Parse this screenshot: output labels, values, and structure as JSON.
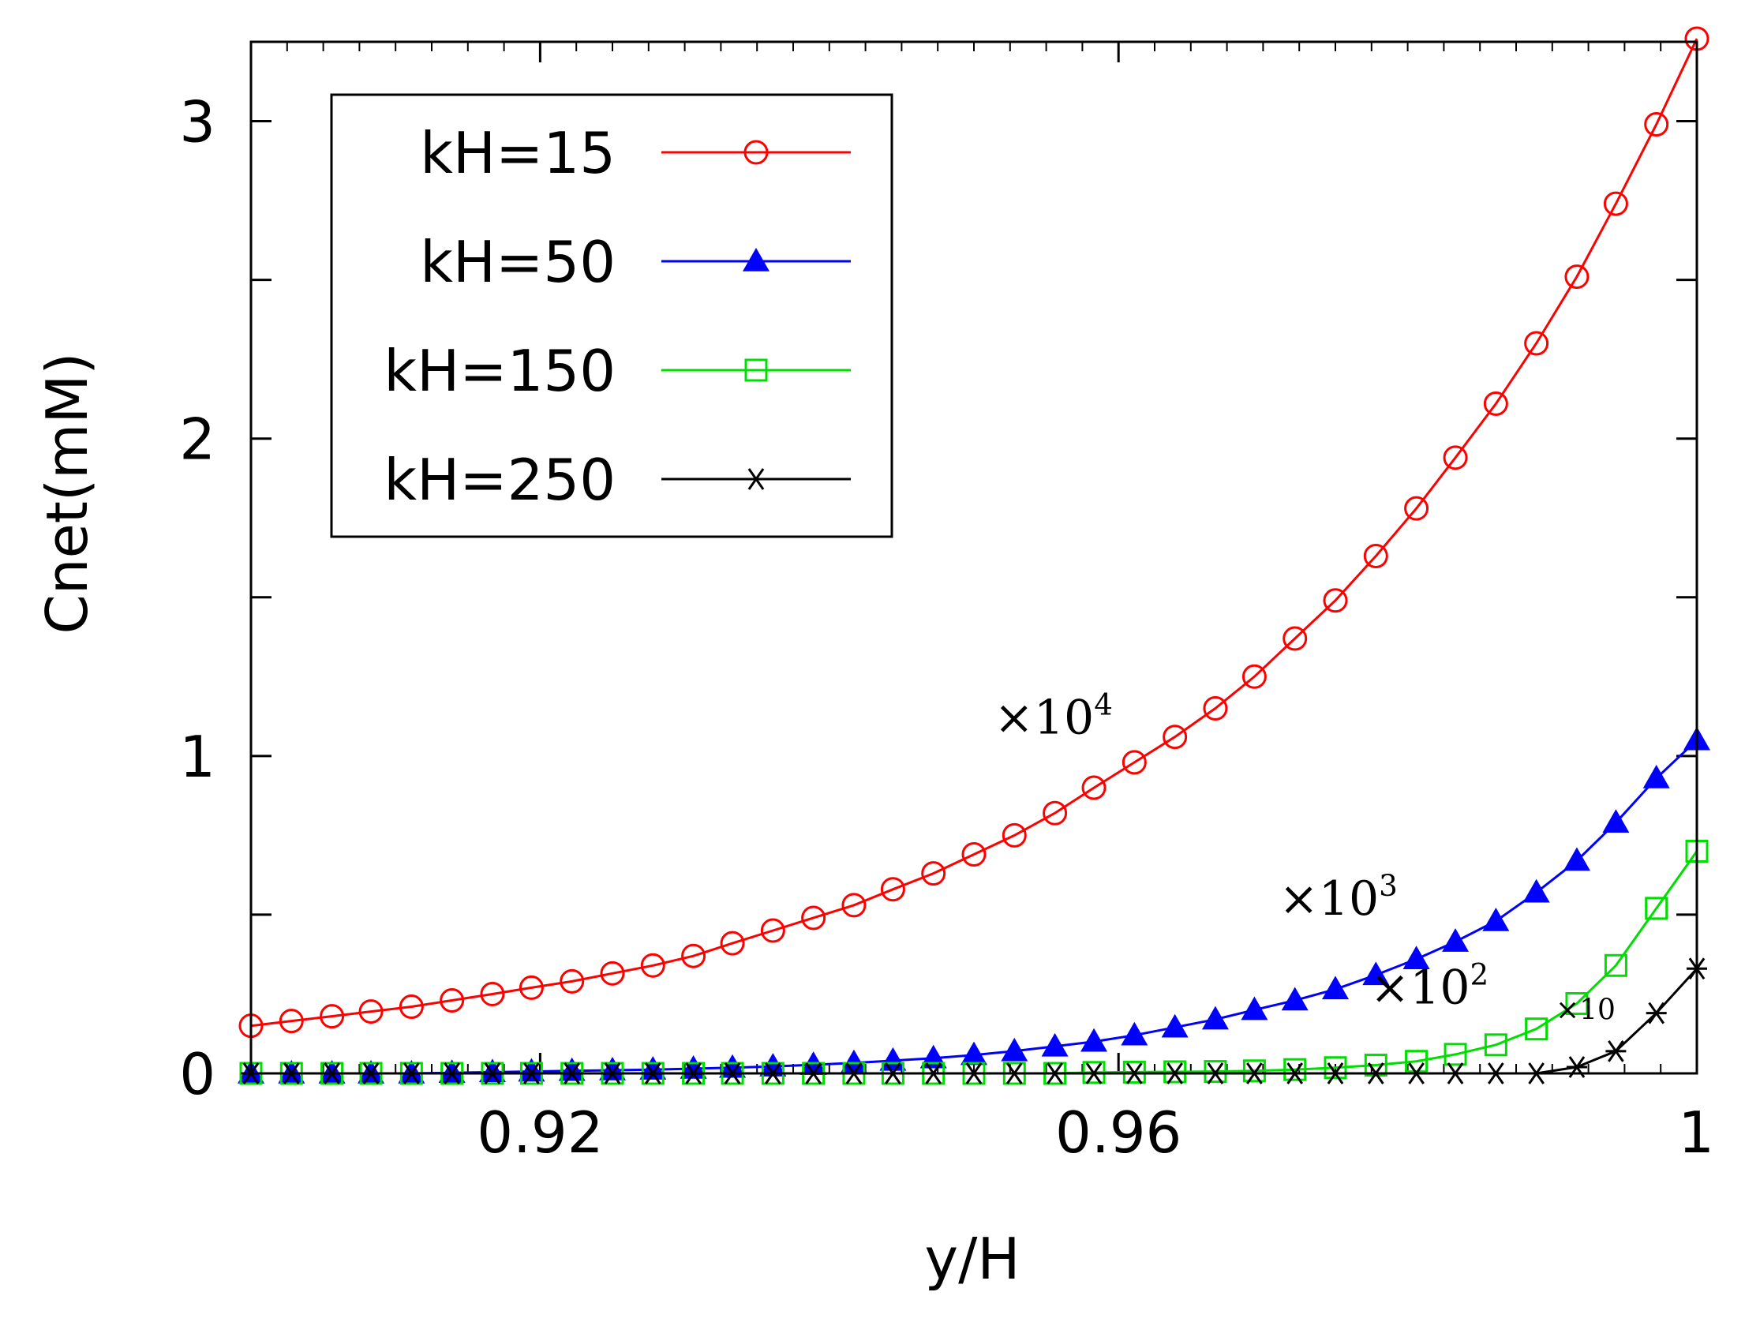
{
  "chart_data": {
    "type": "line",
    "title": "",
    "xlabel": "y/H",
    "ylabel": "Cnet(mM)",
    "xlim": [
      0.9,
      1.0
    ],
    "ylim": [
      0,
      3.25
    ],
    "x_ticks": [
      {
        "value": 0.92,
        "label": "0.92"
      },
      {
        "value": 0.96,
        "label": "0.96"
      },
      {
        "value": 1.0,
        "label": "1"
      }
    ],
    "x_minor_ticks": [
      0.9025,
      0.905,
      0.9075,
      0.91,
      0.9125,
      0.915,
      0.9175,
      0.92,
      0.9225,
      0.925,
      0.9275,
      0.93,
      0.9325,
      0.935,
      0.9375,
      0.94,
      0.9425,
      0.945,
      0.9475,
      0.95,
      0.9525,
      0.955,
      0.9575,
      0.96,
      0.9625,
      0.965,
      0.9675,
      0.97,
      0.9725,
      0.975,
      0.9775,
      0.98,
      0.9825,
      0.985,
      0.9875,
      0.99,
      0.9925,
      0.995,
      0.9975
    ],
    "y_ticks": [
      {
        "value": 0,
        "label": "0"
      },
      {
        "value": 0.5,
        "label": ""
      },
      {
        "value": 1,
        "label": "1"
      },
      {
        "value": 1.5,
        "label": ""
      },
      {
        "value": 2,
        "label": "2"
      },
      {
        "value": 2.5,
        "label": ""
      },
      {
        "value": 3,
        "label": "3"
      }
    ],
    "legend_position": "top-left",
    "series": [
      {
        "name": "kH=15",
        "color": "#ff0000",
        "marker": "circle-open",
        "points": [
          [
            0.9,
            0.15
          ],
          [
            0.9028,
            0.165
          ],
          [
            0.9056,
            0.18
          ],
          [
            0.9083,
            0.195
          ],
          [
            0.9111,
            0.21
          ],
          [
            0.9139,
            0.23
          ],
          [
            0.9167,
            0.25
          ],
          [
            0.9194,
            0.27
          ],
          [
            0.9222,
            0.29
          ],
          [
            0.925,
            0.315
          ],
          [
            0.9278,
            0.34
          ],
          [
            0.9306,
            0.37
          ],
          [
            0.9333,
            0.41
          ],
          [
            0.9361,
            0.45
          ],
          [
            0.9389,
            0.49
          ],
          [
            0.9417,
            0.53
          ],
          [
            0.9444,
            0.58
          ],
          [
            0.9472,
            0.63
          ],
          [
            0.95,
            0.69
          ],
          [
            0.9528,
            0.75
          ],
          [
            0.9556,
            0.82
          ],
          [
            0.9583,
            0.9
          ],
          [
            0.9611,
            0.98
          ],
          [
            0.9639,
            1.06
          ],
          [
            0.9667,
            1.15
          ],
          [
            0.9694,
            1.25
          ],
          [
            0.9722,
            1.37
          ],
          [
            0.975,
            1.49
          ],
          [
            0.9778,
            1.63
          ],
          [
            0.9806,
            1.78
          ],
          [
            0.9833,
            1.94
          ],
          [
            0.9861,
            2.11
          ],
          [
            0.9889,
            2.3
          ],
          [
            0.9917,
            2.51
          ],
          [
            0.9944,
            2.74
          ],
          [
            0.9972,
            2.99
          ],
          [
            1.0,
            3.26
          ]
        ]
      },
      {
        "name": "kH=50",
        "color": "#0000ff",
        "marker": "triangle-filled",
        "points": [
          [
            0.9,
            0.0
          ],
          [
            0.9028,
            0.0
          ],
          [
            0.9056,
            0.0
          ],
          [
            0.9083,
            0.0
          ],
          [
            0.9111,
            0.0
          ],
          [
            0.9139,
            0.002
          ],
          [
            0.9167,
            0.004
          ],
          [
            0.9194,
            0.006
          ],
          [
            0.9222,
            0.008
          ],
          [
            0.925,
            0.01
          ],
          [
            0.9278,
            0.012
          ],
          [
            0.9306,
            0.015
          ],
          [
            0.9333,
            0.018
          ],
          [
            0.9361,
            0.022
          ],
          [
            0.9389,
            0.027
          ],
          [
            0.9417,
            0.033
          ],
          [
            0.9444,
            0.04
          ],
          [
            0.9472,
            0.048
          ],
          [
            0.95,
            0.058
          ],
          [
            0.9528,
            0.07
          ],
          [
            0.9556,
            0.085
          ],
          [
            0.9583,
            0.1
          ],
          [
            0.9611,
            0.12
          ],
          [
            0.9639,
            0.145
          ],
          [
            0.9667,
            0.17
          ],
          [
            0.9694,
            0.2
          ],
          [
            0.9722,
            0.23
          ],
          [
            0.975,
            0.265
          ],
          [
            0.9778,
            0.31
          ],
          [
            0.9806,
            0.36
          ],
          [
            0.9833,
            0.415
          ],
          [
            0.9861,
            0.48
          ],
          [
            0.9889,
            0.57
          ],
          [
            0.9917,
            0.67
          ],
          [
            0.9944,
            0.79
          ],
          [
            0.9972,
            0.93
          ],
          [
            1.0,
            1.05
          ]
        ]
      },
      {
        "name": "kH=150",
        "color": "#00dd00",
        "marker": "square-open",
        "points": [
          [
            0.9,
            0.0
          ],
          [
            0.9028,
            0.0
          ],
          [
            0.9056,
            0.0
          ],
          [
            0.9083,
            0.0
          ],
          [
            0.9111,
            0.0
          ],
          [
            0.9139,
            0.0
          ],
          [
            0.9167,
            0.0
          ],
          [
            0.9194,
            0.0
          ],
          [
            0.9222,
            0.0
          ],
          [
            0.925,
            0.0
          ],
          [
            0.9278,
            0.0
          ],
          [
            0.9306,
            0.0
          ],
          [
            0.9333,
            0.0
          ],
          [
            0.9361,
            0.0
          ],
          [
            0.9389,
            0.0
          ],
          [
            0.9417,
            0.0
          ],
          [
            0.9444,
            0.0
          ],
          [
            0.9472,
            0.0
          ],
          [
            0.95,
            0.0
          ],
          [
            0.9528,
            0.0
          ],
          [
            0.9556,
            0.0
          ],
          [
            0.9583,
            0.003
          ],
          [
            0.9611,
            0.004
          ],
          [
            0.9639,
            0.005
          ],
          [
            0.9667,
            0.006
          ],
          [
            0.9694,
            0.008
          ],
          [
            0.9722,
            0.012
          ],
          [
            0.975,
            0.018
          ],
          [
            0.9778,
            0.026
          ],
          [
            0.9806,
            0.038
          ],
          [
            0.9833,
            0.06
          ],
          [
            0.9861,
            0.09
          ],
          [
            0.9889,
            0.14
          ],
          [
            0.9917,
            0.22
          ],
          [
            0.9944,
            0.34
          ],
          [
            0.9972,
            0.52
          ],
          [
            1.0,
            0.7
          ]
        ]
      },
      {
        "name": "kH=250",
        "color": "#000000",
        "marker": "asterisk",
        "points": [
          [
            0.9,
            0.0
          ],
          [
            0.9028,
            0.0
          ],
          [
            0.9056,
            0.0
          ],
          [
            0.9083,
            0.0
          ],
          [
            0.9111,
            0.0
          ],
          [
            0.9139,
            0.0
          ],
          [
            0.9167,
            0.0
          ],
          [
            0.9194,
            0.0
          ],
          [
            0.9222,
            0.0
          ],
          [
            0.925,
            0.0
          ],
          [
            0.9278,
            0.0
          ],
          [
            0.9306,
            0.0
          ],
          [
            0.9333,
            0.0
          ],
          [
            0.9361,
            0.0
          ],
          [
            0.9389,
            0.0
          ],
          [
            0.9417,
            0.0
          ],
          [
            0.9444,
            0.0
          ],
          [
            0.9472,
            0.0
          ],
          [
            0.95,
            0.0
          ],
          [
            0.9528,
            0.0
          ],
          [
            0.9556,
            0.0
          ],
          [
            0.9583,
            0.0
          ],
          [
            0.9611,
            0.0
          ],
          [
            0.9639,
            0.0
          ],
          [
            0.9667,
            0.0
          ],
          [
            0.9694,
            0.0
          ],
          [
            0.9722,
            0.0
          ],
          [
            0.975,
            0.0
          ],
          [
            0.9778,
            0.0
          ],
          [
            0.9806,
            0.0
          ],
          [
            0.9833,
            0.0
          ],
          [
            0.9861,
            0.0
          ],
          [
            0.9889,
            0.0
          ],
          [
            0.9917,
            0.02
          ],
          [
            0.9944,
            0.07
          ],
          [
            0.9972,
            0.19
          ],
          [
            1.0,
            0.33
          ]
        ]
      }
    ],
    "annotations": [
      {
        "id": "x1e4",
        "base": "×10",
        "exp": "4",
        "x": 0.9555,
        "y": 1.07
      },
      {
        "id": "x1e3",
        "base": "×10",
        "exp": "3",
        "x": 0.9752,
        "y": 0.5
      },
      {
        "id": "x1e2",
        "base": "×10",
        "exp": "2",
        "x": 0.9815,
        "y": 0.22
      },
      {
        "id": "x10",
        "base": "×10",
        "exp": "",
        "x": 0.9923,
        "y": 0.17,
        "small": true
      }
    ]
  }
}
